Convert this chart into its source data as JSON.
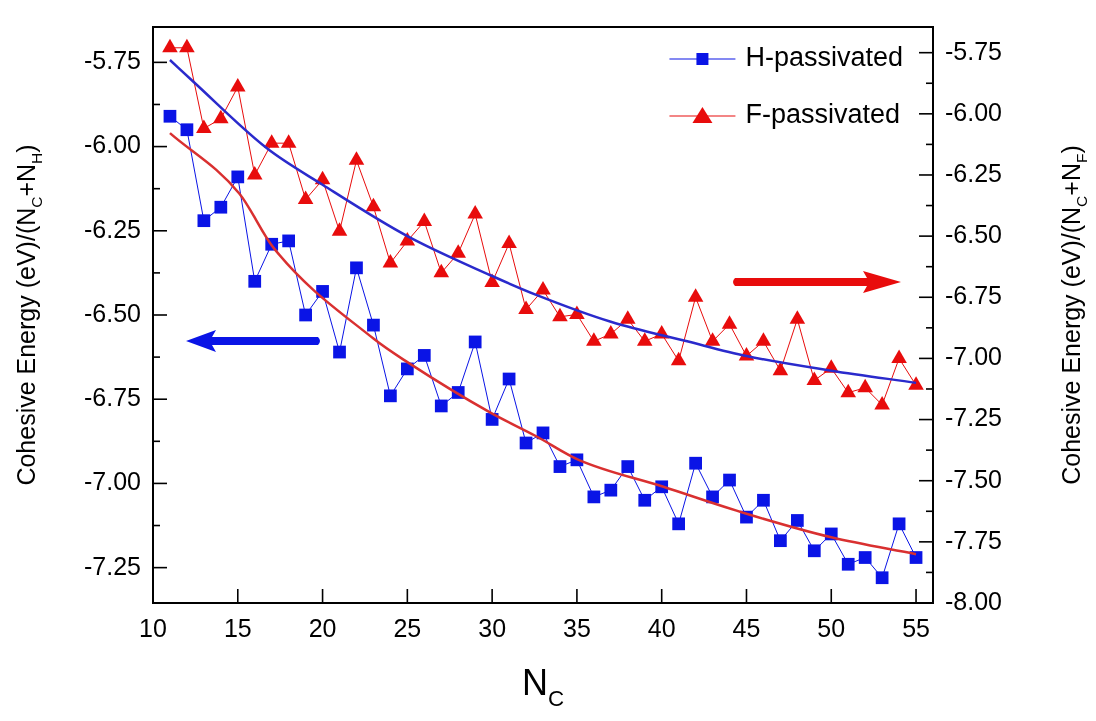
{
  "chart_data": {
    "type": "line",
    "xlabel": "N$_{C}$",
    "ylabel": "Cohesive Energy (eV)/(N$_{C}$+N$_{H}$)",
    "y2label": "Cohesive Energy (eV)/(N$_{C}$+N$_{F}$)",
    "x": [
      11,
      12,
      13,
      14,
      15,
      16,
      17,
      18,
      19,
      20,
      21,
      22,
      23,
      24,
      25,
      26,
      27,
      28,
      29,
      30,
      31,
      32,
      33,
      34,
      35,
      36,
      37,
      38,
      39,
      40,
      41,
      42,
      43,
      44,
      45,
      46,
      47,
      48,
      49,
      50,
      51,
      52,
      53,
      54,
      55
    ],
    "xlim": [
      10,
      56
    ],
    "xticks": [
      10,
      15,
      20,
      25,
      30,
      35,
      40,
      45,
      50,
      55
    ],
    "ylim": [
      -7.355,
      -5.645
    ],
    "yticks": [
      -5.75,
      {
        "value": -5.875,
        "label": null
      },
      {
        "value": -6,
        "label": "-6.00"
      },
      {
        "value": -6.125,
        "label": null
      },
      -6.25,
      {
        "value": -6.375,
        "label": null
      },
      {
        "value": -6.5,
        "label": "-6.50"
      },
      {
        "value": -6.625,
        "label": null
      },
      -6.75,
      {
        "value": -6.875,
        "label": null
      },
      {
        "value": -7,
        "label": "-7.00"
      },
      {
        "value": -7.125,
        "label": null
      },
      -7.25
    ],
    "y2lim": [
      -8,
      -5.645
    ],
    "y2ticks": [
      -5.75,
      {
        "value": -5.875,
        "label": null
      },
      {
        "value": -6,
        "label": "-6.00"
      },
      {
        "value": -6.125,
        "label": null
      },
      -6.25,
      {
        "value": -6.375,
        "label": null
      },
      {
        "value": -6.5,
        "label": "-6.50"
      },
      {
        "value": -6.625,
        "label": null
      },
      -6.75,
      {
        "value": -6.875,
        "label": null
      },
      {
        "value": -7,
        "label": "-7.00"
      },
      {
        "value": -7.125,
        "label": null
      },
      -7.25,
      {
        "value": -7.375,
        "label": null
      },
      {
        "value": -7.5,
        "label": "-7.50"
      },
      {
        "value": -7.625,
        "label": null
      },
      -7.75,
      {
        "value": -7.875,
        "label": null
      },
      {
        "value": -8,
        "label": "-8.00"
      }
    ],
    "grid": false,
    "legend": "top right",
    "series": [
      {
        "name": "H-passivated",
        "color": "#0a14e6",
        "marker": "square",
        "axis": "y",
        "values": [
          -5.91,
          -5.95,
          -6.22,
          -6.18,
          -6.09,
          -6.4,
          -6.29,
          -6.28,
          -6.5,
          -6.43,
          -6.61,
          -6.36,
          -6.53,
          -6.74,
          -6.66,
          -6.62,
          -6.77,
          -6.73,
          -6.58,
          -6.81,
          -6.69,
          -6.88,
          -6.85,
          -6.95,
          -6.93,
          -7.04,
          -7.02,
          -6.95,
          -7.05,
          -7.01,
          -7.12,
          -6.94,
          -7.04,
          -6.99,
          -7.1,
          -7.05,
          -7.17,
          -7.11,
          -7.2,
          -7.15,
          -7.24,
          -7.22,
          -7.28,
          -7.12,
          -7.22
        ]
      },
      {
        "name": "F-passivated",
        "color": "#e80c0c",
        "marker": "triangle",
        "axis": "y2",
        "values": [
          -5.73,
          -5.73,
          -6.06,
          -6.02,
          -5.89,
          -6.25,
          -6.12,
          -6.12,
          -6.35,
          -6.27,
          -6.48,
          -6.19,
          -6.38,
          -6.61,
          -6.52,
          -6.44,
          -6.65,
          -6.57,
          -6.41,
          -6.69,
          -6.53,
          -6.8,
          -6.72,
          -6.83,
          -6.82,
          -6.93,
          -6.9,
          -6.84,
          -6.93,
          -6.9,
          -7.01,
          -6.75,
          -6.93,
          -6.86,
          -6.99,
          -6.93,
          -7.05,
          -6.84,
          -7.09,
          -7.04,
          -7.14,
          -7.12,
          -7.19,
          -7,
          -7.11
        ]
      },
      {
        "type": "line",
        "color": "#2a2acc",
        "marker": "none",
        "axis": "y2",
        "x": [
          11,
          12.4,
          16.7,
          20,
          25,
          29.9,
          32.6,
          37,
          41.5,
          45,
          50,
          55
        ],
        "values": [
          -5.78,
          -5.87,
          -6.14,
          -6.29,
          -6.5,
          -6.66,
          -6.74,
          -6.85,
          -6.93,
          -6.99,
          -7.05,
          -7.1
        ]
      },
      {
        "type": "line",
        "color": "#d93030",
        "marker": "none",
        "axis": "y",
        "x": [
          11,
          15.1,
          17.1,
          23,
          25,
          29.9,
          32.6,
          35.1,
          40.1,
          45,
          50,
          55
        ],
        "values": [
          -5.96,
          -6.14,
          -6.3,
          -6.57,
          -6.64,
          -6.79,
          -6.86,
          -6.93,
          -7.01,
          -7.09,
          -7.16,
          -7.21
        ]
      }
    ]
  }
}
